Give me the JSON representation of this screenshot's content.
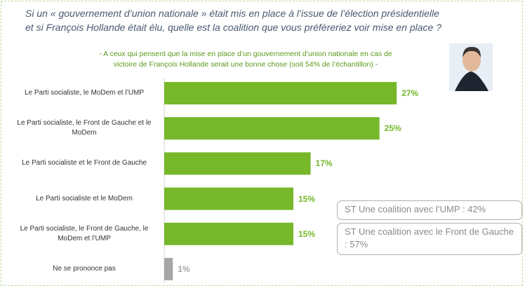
{
  "chart_data": {
    "type": "bar",
    "orientation": "horizontal",
    "title": "Si un « gouvernement d’union nationale » était mis en place à l’issue de l’élection présidentielle et si François Hollande était élu, quelle est la coalition que vous préfèreriez voir mise en place ?",
    "subtitle": "- A ceux qui pensent que la mise en place d’un gouvernement d’union nationale en cas de victoire de François Hollande serait une bonne chose (soit 54% de l’échantillon) -",
    "categories": [
      "Le Parti socialiste, le MoDem et l’UMP",
      "Le Parti socialiste, le Front de Gauche et le MoDem",
      "Le Parti socialiste et le Front de Gauche",
      "Le Parti socialiste et le MoDem",
      "Le Parti socialiste, le Front de Gauche, le MoDem et l’UMP",
      "Ne se prononce pas"
    ],
    "values": [
      27,
      25,
      17,
      15,
      15,
      1
    ],
    "value_labels": [
      "27%",
      "25%",
      "17%",
      "15%",
      "15%",
      "1%"
    ],
    "colors": [
      "#76b82a",
      "#76b82a",
      "#76b82a",
      "#76b82a",
      "#76b82a",
      "#a6a6a6"
    ],
    "xlim": [
      0,
      30
    ],
    "annotations": [
      "ST Une coalition avec l’UMP : 42%",
      "ST Une coalition avec le Front de Gauche : 57%"
    ]
  }
}
